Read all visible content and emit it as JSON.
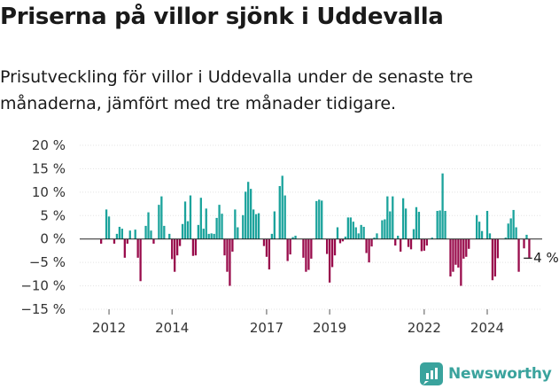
{
  "header": {
    "title": "Priserna på villor sjönk i Uddevalla",
    "subtitle": "Prisutveckling för villor i Uddevalla under de senaste tre månaderna, jämfört med tre månader tidigare."
  },
  "brand": {
    "name": "Newsworthy",
    "icon": "newsworthy-logo-icon"
  },
  "colors": {
    "positive": "#1ba39c",
    "negative": "#990c4c",
    "text": "#1a1a1a"
  },
  "chart_data": {
    "type": "bar",
    "ylim": [
      -15,
      20
    ],
    "y_ticks": [
      20,
      15,
      10,
      5,
      0,
      -5,
      -10,
      -15
    ],
    "y_tick_labels": [
      "20 %",
      "15 %",
      "10 %",
      "5 %",
      "0 %",
      "−5 %",
      "−10 %",
      "−15 %"
    ],
    "x_tick_labels": [
      {
        "label": "2012",
        "index": 3
      },
      {
        "label": "2014",
        "index": 27
      },
      {
        "label": "2017",
        "index": 63
      },
      {
        "label": "2019",
        "index": 87
      },
      {
        "label": "2022",
        "index": 123
      },
      {
        "label": "2024",
        "index": 147
      }
    ],
    "annotation": {
      "label": "−4 %",
      "index": 159,
      "value": -4
    },
    "values": [
      -1,
      0,
      6.3,
      4.8,
      0,
      -1,
      1.1,
      2.6,
      2.2,
      -4,
      -1,
      1.8,
      0,
      2,
      -4,
      -9,
      0,
      2.8,
      5.7,
      1.8,
      -1,
      0,
      7.3,
      9.1,
      2.8,
      0,
      1.1,
      -4.3,
      -7,
      -3.5,
      -1.5,
      3.2,
      8,
      3.8,
      9.3,
      -3.6,
      -3.5,
      3,
      8.8,
      2.2,
      6.5,
      1.1,
      1.2,
      1.1,
      4.5,
      7.3,
      5.4,
      -3.5,
      -7,
      -10,
      -2.7,
      6.3,
      2.5,
      0,
      5.1,
      10.1,
      12.2,
      10.7,
      6.3,
      5.3,
      5.5,
      0,
      -1.5,
      -3.8,
      -6.5,
      1.1,
      5.9,
      0,
      11.3,
      13.5,
      9.3,
      -4.7,
      -3.3,
      0.4,
      0.7,
      0,
      0,
      -4,
      -7,
      -6.6,
      -4.2,
      0,
      8.1,
      8.4,
      8.2,
      0,
      -3.2,
      -9.3,
      -6,
      -3.5,
      2.5,
      -0.9,
      -0.5,
      0.5,
      4.6,
      4.6,
      3.7,
      2.5,
      1.2,
      3,
      2.6,
      -3,
      -5,
      -1.6,
      0.3,
      1.2,
      0,
      4,
      4.2,
      9.1,
      5.9,
      9.1,
      -1.4,
      0.7,
      -2.7,
      8.7,
      6.5,
      -1.7,
      -2.2,
      2.1,
      6.8,
      5.8,
      -2.6,
      -2.5,
      -1.4,
      0,
      0.3,
      0,
      6,
      6.1,
      14,
      6,
      0,
      -8,
      -7,
      -5.5,
      -6.1,
      -10,
      -4.2,
      -3.8,
      -2.1,
      0,
      0,
      5.1,
      3.7,
      1.7,
      0,
      6,
      1.2,
      -8.8,
      -8,
      -4.1,
      0,
      0,
      0.3,
      3.3,
      4.4,
      6.2,
      2.5,
      -7,
      0,
      -2,
      0.9,
      -4
    ]
  }
}
